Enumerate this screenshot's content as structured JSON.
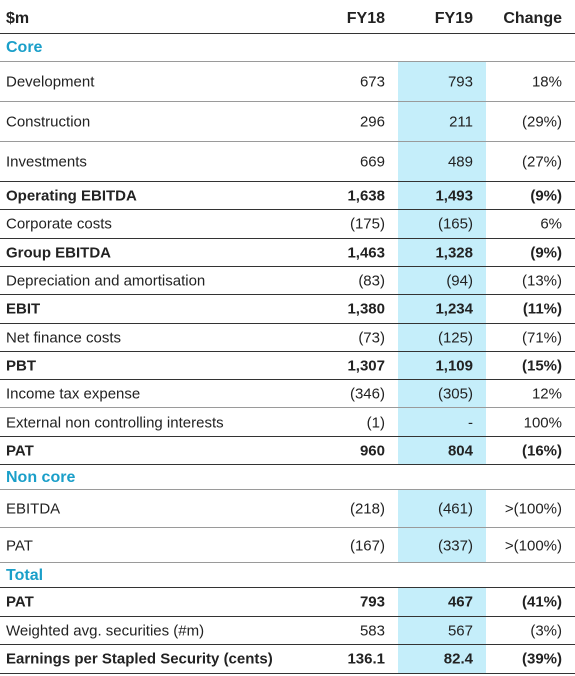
{
  "header": [
    "$m",
    "FY18",
    "FY19",
    "Change"
  ],
  "sections": [
    {
      "title": "Core",
      "rows": [
        {
          "cells": [
            "Development",
            "673",
            "793",
            "18%"
          ]
        },
        {
          "cells": [
            "Construction",
            "296",
            "211",
            "(29%)"
          ]
        },
        {
          "cells": [
            "Investments",
            "669",
            "489",
            "(27%)"
          ]
        },
        {
          "cells": [
            "Operating EBITDA",
            "1,638",
            "1,493",
            "(9%)"
          ],
          "bold": true
        },
        {
          "cells": [
            "Corporate costs",
            "(175)",
            "(165)",
            "6%"
          ]
        },
        {
          "cells": [
            "Group EBITDA",
            "1,463",
            "1,328",
            "(9%)"
          ],
          "bold": true
        },
        {
          "cells": [
            "Depreciation and amortisation",
            "(83)",
            "(94)",
            "(13%)"
          ]
        },
        {
          "cells": [
            "EBIT",
            "1,380",
            "1,234",
            "(11%)"
          ],
          "bold": true
        },
        {
          "cells": [
            "Net finance costs",
            "(73)",
            "(125)",
            "(71%)"
          ]
        },
        {
          "cells": [
            "PBT",
            "1,307",
            "1,109",
            "(15%)"
          ],
          "bold": true
        },
        {
          "cells": [
            "Income tax expense",
            "(346)",
            "(305)",
            "12%"
          ]
        },
        {
          "cells": [
            "External non controlling interests",
            "(1)",
            "-",
            "100%"
          ]
        },
        {
          "cells": [
            "PAT",
            "960",
            "804",
            "(16%)"
          ],
          "bold": true
        }
      ]
    },
    {
      "title": "Non core",
      "rows": [
        {
          "cells": [
            "EBITDA",
            "(218)",
            "(461)",
            ">(100%)"
          ]
        },
        {
          "cells": [
            "PAT",
            "(167)",
            "(337)",
            ">(100%)"
          ]
        }
      ]
    },
    {
      "title": "Total",
      "rows": [
        {
          "cells": [
            "PAT",
            "793",
            "467",
            "(41%)"
          ],
          "bold": true
        },
        {
          "cells": [
            "Weighted avg. securities (#m)",
            "583",
            "567",
            "(3%)"
          ]
        },
        {
          "cells": [
            "Earnings per Stapled Security (cents)",
            "136.1",
            "82.4",
            "(39%)"
          ],
          "bold": true
        }
      ]
    }
  ]
}
